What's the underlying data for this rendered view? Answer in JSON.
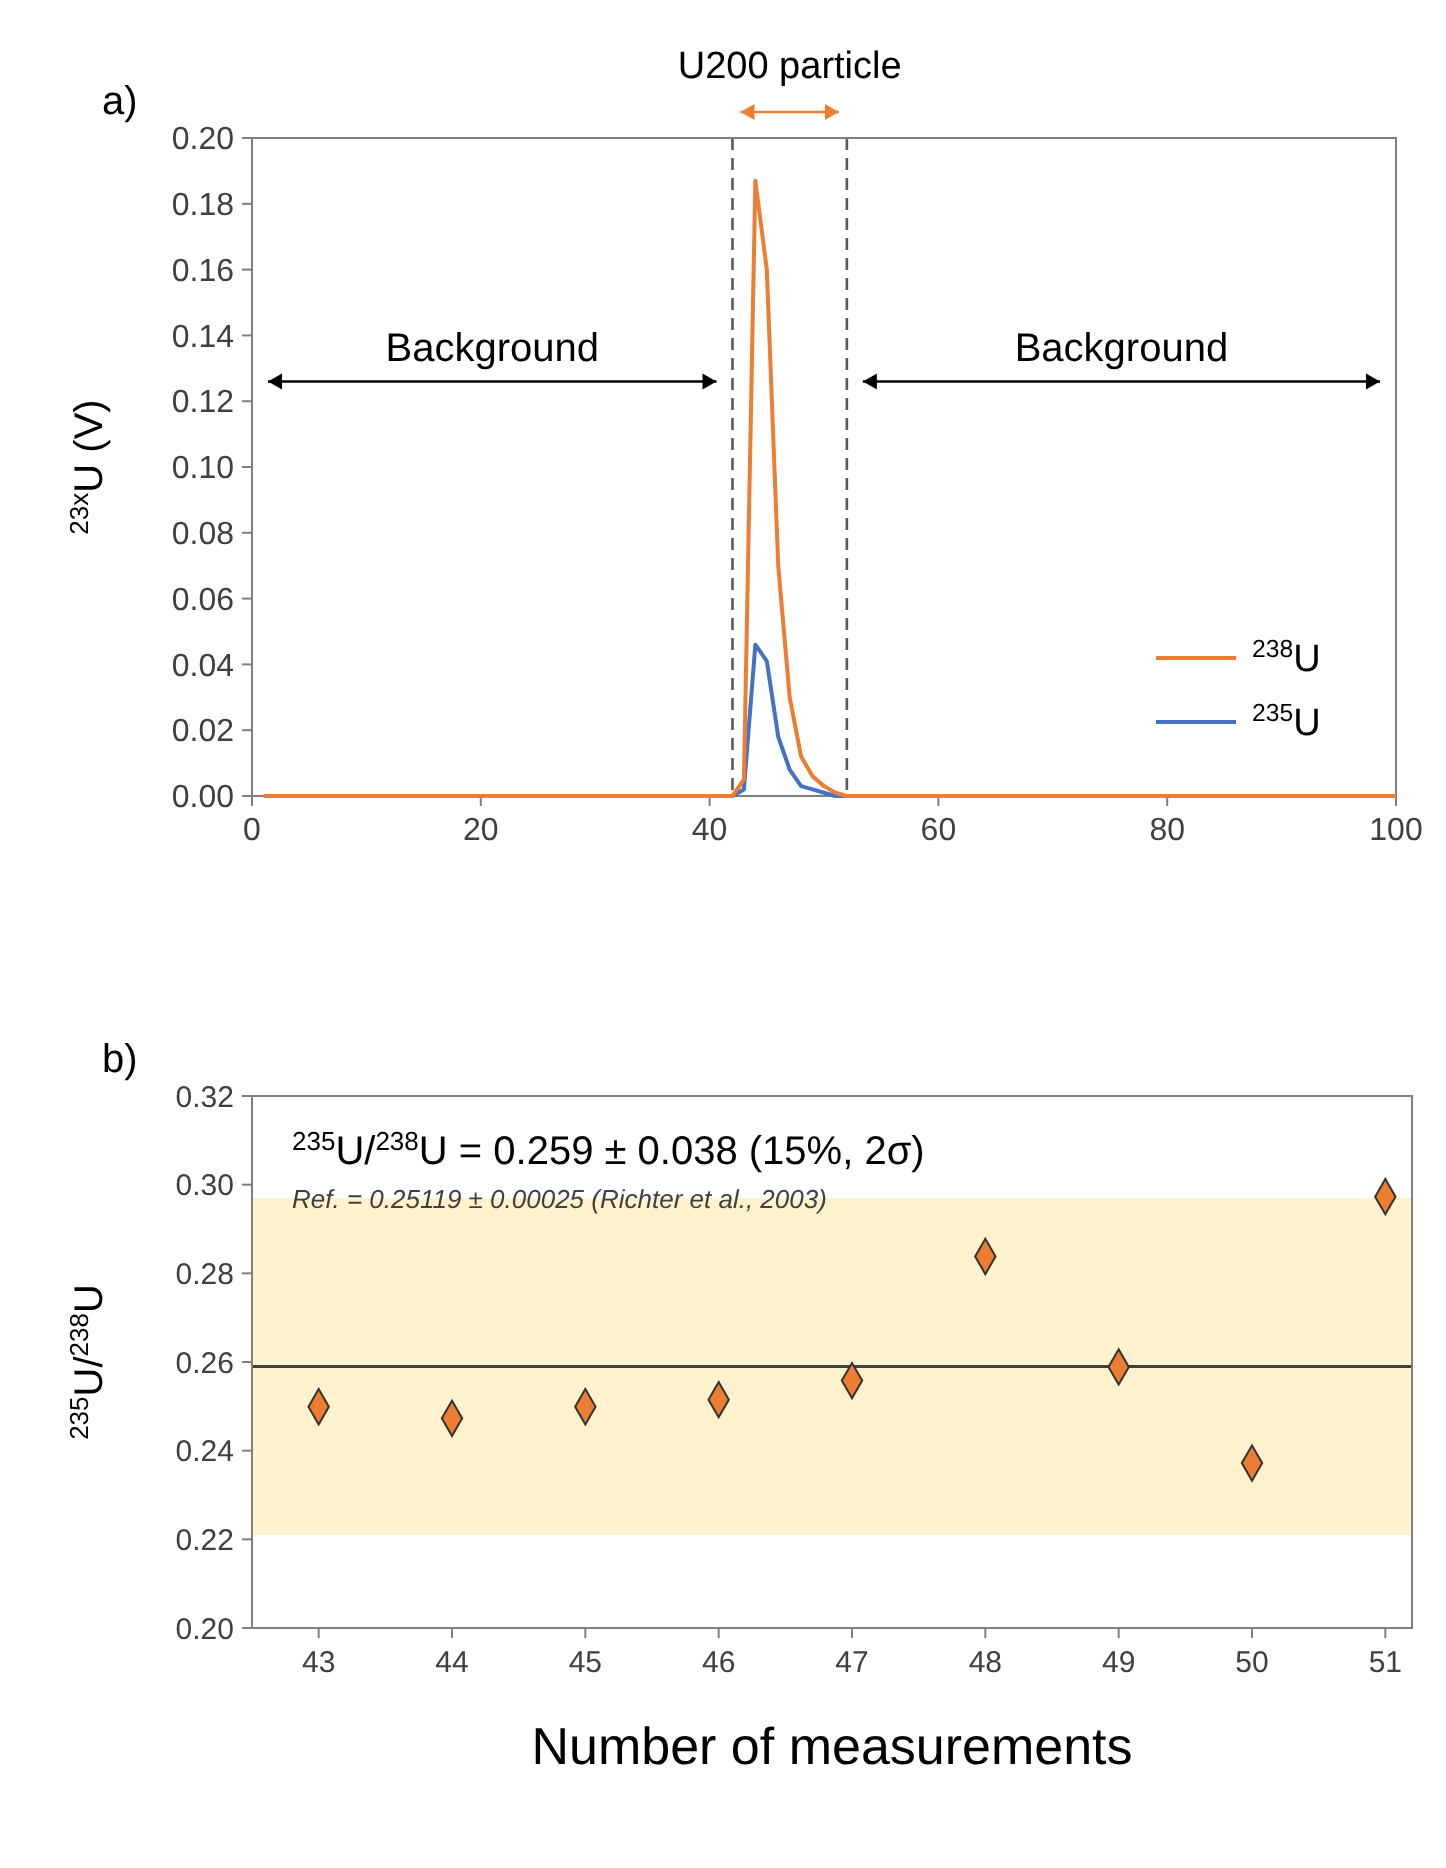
{
  "chart_data": [
    {
      "type": "line",
      "title": "a)",
      "ylabel": "$^{23x}$U (V)",
      "x": [
        1,
        10,
        20,
        30,
        40,
        42,
        43,
        44,
        45,
        46,
        47,
        48,
        49,
        50,
        51,
        52,
        60,
        70,
        80,
        90,
        100
      ],
      "series": [
        {
          "name": "$^{238}$U",
          "color": "#ed7d31",
          "values": [
            0,
            0,
            0,
            0,
            0,
            0,
            0.005,
            0.187,
            0.16,
            0.07,
            0.03,
            0.012,
            0.006,
            0.003,
            0.001,
            0,
            0,
            0,
            0,
            0,
            0
          ]
        },
        {
          "name": "$^{235}$U",
          "color": "#4472c4",
          "x": [
            42,
            43,
            44,
            45,
            46,
            47,
            48,
            49,
            50,
            51,
            52
          ],
          "values": [
            0,
            0.002,
            0.046,
            0.041,
            0.018,
            0.008,
            0.003,
            0.002,
            0.001,
            0,
            0
          ]
        }
      ],
      "xlim": [
        0,
        100
      ],
      "xticks": [
        0,
        20,
        40,
        60,
        80,
        100
      ],
      "ylim": [
        0,
        0.2
      ],
      "yticks": [
        {
          "value": 0,
          "label": "0.00"
        },
        {
          "value": 0.02,
          "label": "0.02"
        },
        {
          "value": 0.04,
          "label": "0.04"
        },
        {
          "value": 0.06,
          "label": "0.06"
        },
        {
          "value": 0.08,
          "label": "0.08"
        },
        {
          "value": 0.1,
          "label": "0.10"
        },
        {
          "value": 0.12,
          "label": "0.12"
        },
        {
          "value": 0.14,
          "label": "0.14"
        },
        {
          "value": 0.16,
          "label": "0.16"
        },
        {
          "value": 0.18,
          "label": "0.18"
        },
        {
          "value": 0.2,
          "label": "0.20"
        }
      ],
      "ref_lines": [
        {
          "axis": "x",
          "value": 42,
          "color": "#595959",
          "line_style": "dashed"
        },
        {
          "axis": "x",
          "value": 52,
          "color": "#595959",
          "line_style": "dashed"
        }
      ],
      "annotations": [
        "U200 particle",
        "Background",
        "Background"
      ],
      "legend": "bottom right",
      "grid": false,
      "marker": "none",
      "line_style": "solid"
    },
    {
      "type": "scatter",
      "title": "b)",
      "ylabel": "$^{235}$U/$^{238}$U",
      "xlabel": "Number of measurements",
      "x": [
        43,
        44,
        45,
        46,
        47,
        48,
        49,
        50,
        51
      ],
      "series": [
        {
          "color": "#ed7d31",
          "values": [
            0.2499,
            0.2473,
            0.2499,
            0.2515,
            0.2558,
            0.2838,
            0.2589,
            0.2372,
            0.2973
          ]
        }
      ],
      "xlim": [
        42.5,
        51.2
      ],
      "xticks": [
        43,
        44,
        45,
        46,
        47,
        48,
        49,
        50,
        51
      ],
      "ylim": [
        0.2,
        0.32
      ],
      "yticks": [
        {
          "value": 0.2,
          "label": "0.20"
        },
        {
          "value": 0.22,
          "label": "0.22"
        },
        {
          "value": 0.24,
          "label": "0.24"
        },
        {
          "value": 0.26,
          "label": "0.26"
        },
        {
          "value": 0.28,
          "label": "0.28"
        },
        {
          "value": 0.3,
          "label": "0.30"
        },
        {
          "value": 0.32,
          "label": "0.32"
        }
      ],
      "ref_lines": [
        {
          "axis": "y",
          "value": 0.259,
          "color": "#404040"
        }
      ],
      "bands": [
        {
          "axis": "y",
          "from": 0.221,
          "to": 0.297,
          "color": "#fff2cc"
        }
      ],
      "annotations": [
        "$^{235}$U/$^{238}$U = 0.259 ± 0.038 (15%, 2σ)",
        "Ref. = 0.25119 ± 0.00025 (Richter et al., 2003)"
      ],
      "legend": false,
      "grid": false,
      "marker": "diamond"
    }
  ]
}
